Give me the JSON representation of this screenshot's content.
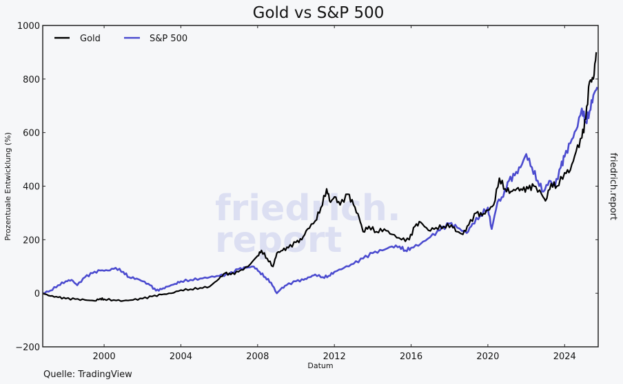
{
  "chart_data": {
    "type": "line",
    "title": "Gold vs S&P 500",
    "xlabel": "Datum",
    "ylabel": "Prozentuale Entwicklung (%)",
    "xlim": [
      1996.8,
      2025.75
    ],
    "ylim": [
      -200,
      1000
    ],
    "x_ticks": [
      2000,
      2004,
      2008,
      2012,
      2016,
      2020,
      2024
    ],
    "y_ticks": [
      -200,
      0,
      200,
      400,
      600,
      800,
      1000
    ],
    "grid": false,
    "legend_position": "top-left",
    "source": "Quelle: TradingView",
    "side_label": "friedrich.report",
    "watermark": [
      "friedrich.",
      "report"
    ],
    "series": [
      {
        "name": "Gold",
        "color": "#000000",
        "x": [
          1996.8,
          1997.2,
          1997.6,
          1998.0,
          1998.5,
          1999.0,
          1999.5,
          1999.8,
          2000.0,
          2000.5,
          2001.0,
          2001.5,
          2002.0,
          2002.5,
          2003.0,
          2003.5,
          2004.0,
          2004.5,
          2005.0,
          2005.5,
          2006.0,
          2006.3,
          2006.6,
          2007.0,
          2007.5,
          2008.0,
          2008.2,
          2008.5,
          2008.8,
          2009.0,
          2009.3,
          2009.6,
          2010.0,
          2010.3,
          2010.6,
          2011.0,
          2011.3,
          2011.6,
          2011.8,
          2012.0,
          2012.3,
          2012.7,
          2013.0,
          2013.3,
          2013.5,
          2013.8,
          2014.2,
          2014.6,
          2015.0,
          2015.5,
          2015.9,
          2016.2,
          2016.5,
          2016.9,
          2017.3,
          2017.7,
          2018.1,
          2018.4,
          2018.7,
          2019.0,
          2019.4,
          2019.7,
          2020.0,
          2020.3,
          2020.6,
          2020.9,
          2021.2,
          2021.5,
          2021.8,
          2022.1,
          2022.4,
          2022.8,
          2023.0,
          2023.3,
          2023.6,
          2024.0,
          2024.3,
          2024.6,
          2024.9,
          2025.1,
          2025.3,
          2025.5,
          2025.65
        ],
        "values": [
          0,
          -10,
          -15,
          -20,
          -22,
          -25,
          -28,
          -20,
          -22,
          -25,
          -28,
          -25,
          -20,
          -12,
          -5,
          0,
          12,
          15,
          20,
          25,
          55,
          75,
          70,
          80,
          100,
          140,
          160,
          130,
          100,
          150,
          160,
          170,
          190,
          200,
          240,
          270,
          320,
          390,
          340,
          360,
          330,
          370,
          330,
          280,
          230,
          250,
          230,
          240,
          220,
          200,
          200,
          250,
          265,
          235,
          245,
          250,
          255,
          230,
          220,
          255,
          300,
          290,
          310,
          330,
          430,
          390,
          380,
          390,
          385,
          390,
          400,
          370,
          345,
          410,
          400,
          450,
          460,
          530,
          580,
          650,
          790,
          800,
          900
        ]
      },
      {
        "name": "S&P 500",
        "color": "#4b4bcf",
        "x": [
          1996.8,
          1997.2,
          1997.6,
          1998.0,
          1998.3,
          1998.6,
          1999.0,
          1999.4,
          1999.8,
          2000.2,
          2000.6,
          2001.0,
          2001.3,
          2001.7,
          2002.0,
          2002.4,
          2002.7,
          2003.0,
          2003.3,
          2003.7,
          2004.0,
          2004.5,
          2005.0,
          2005.5,
          2006.0,
          2006.5,
          2007.0,
          2007.4,
          2007.8,
          2008.1,
          2008.4,
          2008.7,
          2009.0,
          2009.2,
          2009.5,
          2010.0,
          2010.4,
          2010.7,
          2011.0,
          2011.4,
          2011.7,
          2012.0,
          2012.5,
          2013.0,
          2013.5,
          2014.0,
          2014.5,
          2015.0,
          2015.4,
          2015.7,
          2016.0,
          2016.5,
          2017.0,
          2017.5,
          2018.0,
          2018.4,
          2018.9,
          2019.2,
          2019.6,
          2020.0,
          2020.2,
          2020.5,
          2020.8,
          2021.1,
          2021.4,
          2021.7,
          2022.0,
          2022.3,
          2022.6,
          2022.9,
          2023.2,
          2023.5,
          2023.8,
          2024.0,
          2024.3,
          2024.6,
          2024.9,
          2025.1,
          2025.3,
          2025.5,
          2025.7
        ],
        "values": [
          0,
          10,
          30,
          45,
          50,
          30,
          60,
          75,
          85,
          85,
          95,
          80,
          60,
          55,
          45,
          30,
          10,
          15,
          25,
          35,
          45,
          50,
          55,
          60,
          65,
          70,
          90,
          95,
          100,
          80,
          60,
          40,
          0,
          15,
          30,
          45,
          50,
          60,
          70,
          60,
          65,
          80,
          95,
          110,
          130,
          150,
          160,
          175,
          175,
          160,
          170,
          185,
          210,
          235,
          260,
          245,
          225,
          260,
          290,
          320,
          240,
          340,
          360,
          420,
          440,
          470,
          520,
          470,
          420,
          380,
          420,
          400,
          470,
          510,
          560,
          610,
          690,
          640,
          680,
          740,
          770
        ]
      }
    ]
  }
}
